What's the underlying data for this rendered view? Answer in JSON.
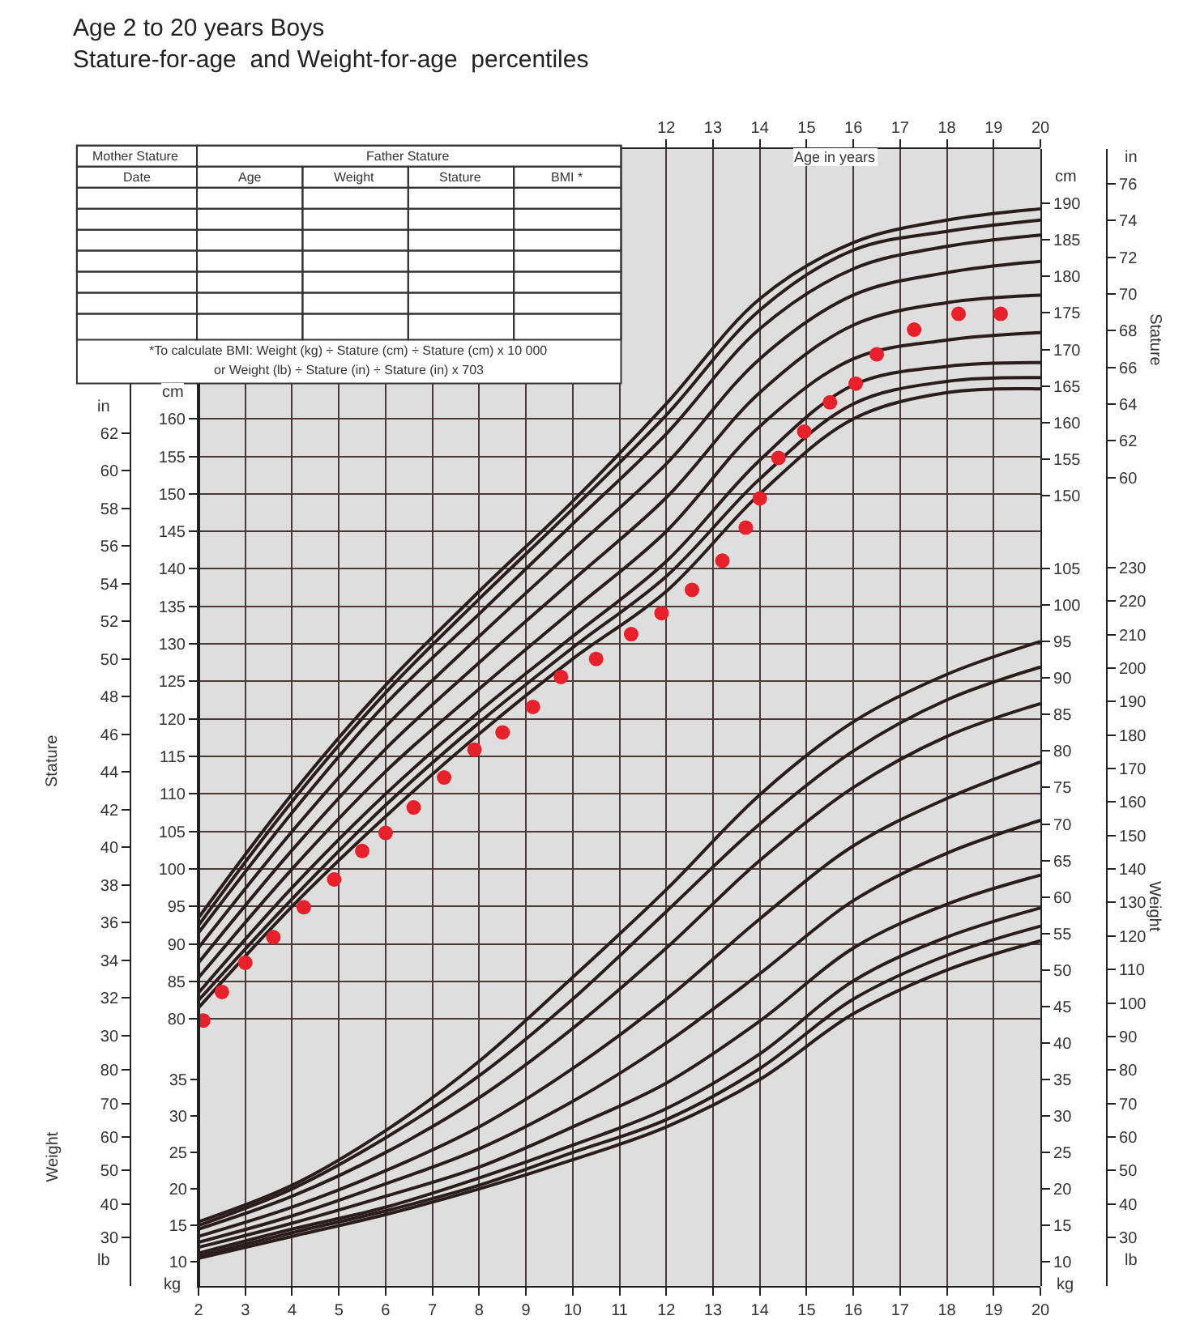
{
  "chart_data": [
    {
      "type": "line",
      "title": "Age 2 to 20 years Boys",
      "subtitle": "Stature-for-age  and Weight-for-age  percentiles",
      "x2label": "Age in years",
      "ylabel": "cm",
      "y2label": "cm",
      "y3label": "in",
      "annotations": [
        "Mother Stature",
        "Father Stature",
        "Date",
        "Age",
        "Weight",
        "Stature",
        "BMI *",
        "*To calculate BMI: Weight (kg) ÷ Stature (cm) ÷ Stature (cm) x 10 000",
        "or Weight (lb) ÷ Stature (in) ÷ Stature (in) x 703",
        "Stature",
        "Stature"
      ],
      "x": [
        2,
        4,
        6,
        8,
        10,
        12,
        14,
        16,
        18,
        20
      ],
      "xlim": [
        2,
        20
      ],
      "xticks": [
        2,
        3,
        4,
        5,
        6,
        7,
        8,
        9,
        10,
        11,
        12,
        13,
        14,
        15,
        16,
        17,
        18,
        19,
        20
      ],
      "x2lim": [
        2,
        20
      ],
      "x2ticks": [
        12,
        13,
        14,
        15,
        16,
        17,
        18,
        19,
        20
      ],
      "ylim": [
        44.4,
        196.0
      ],
      "yticks": [
        80,
        85,
        90,
        95,
        100,
        105,
        110,
        115,
        120,
        125,
        130,
        135,
        140,
        145,
        150,
        155,
        160
      ],
      "y2lim": [
        42.1,
        197.4
      ],
      "y2ticks": [
        150,
        155,
        160,
        165,
        170,
        175,
        180,
        185,
        190
      ],
      "y3lim": [
        16.7,
        77.1
      ],
      "y3ticks": [
        30,
        32,
        34,
        36,
        38,
        40,
        42,
        44,
        46,
        48,
        50,
        52,
        54,
        56,
        58,
        60,
        62
      ],
      "grid": true,
      "marker": "none",
      "line_style": "solid",
      "series": [
        {
          "color": "#2b1d1d",
          "values": [
            81.5,
            95,
            107,
            118,
            128,
            137,
            150,
            160,
            163.5,
            164
          ]
        },
        {
          "color": "#2b1d1d",
          "values": [
            82.5,
            96,
            108.5,
            119.5,
            129.5,
            139,
            152,
            162,
            165,
            165.5
          ]
        },
        {
          "color": "#2b1d1d",
          "values": [
            83.5,
            97.5,
            110,
            121,
            131,
            141,
            154.5,
            164.5,
            167,
            167.5
          ]
        },
        {
          "color": "#2b1d1d",
          "values": [
            85.5,
            100,
            113,
            124,
            134.5,
            145,
            159,
            168,
            170.5,
            171.5
          ]
        },
        {
          "color": "#2b1d1d",
          "values": [
            87.5,
            102.5,
            116,
            127.5,
            138.5,
            149.5,
            163.5,
            172.5,
            175.5,
            176.5
          ]
        },
        {
          "color": "#2b1d1d",
          "values": [
            89.5,
            105,
            119,
            131,
            142.5,
            154,
            168,
            176.5,
            179.5,
            181
          ]
        },
        {
          "color": "#2b1d1d",
          "values": [
            91.5,
            107.5,
            122,
            134,
            146,
            158,
            172,
            180,
            183,
            184.5
          ]
        },
        {
          "color": "#2b1d1d",
          "values": [
            92.5,
            109,
            123.5,
            136,
            148,
            160.5,
            174.5,
            182.5,
            185,
            186.5
          ]
        },
        {
          "color": "#2b1d1d",
          "values": [
            93.5,
            110,
            124.5,
            137,
            149,
            162,
            176,
            183.5,
            186.5,
            188
          ]
        },
        {
          "type": "scatter",
          "marker": "circle",
          "color": "#e8202a",
          "x": [
            2.1,
            2.5,
            3.0,
            3.6,
            4.25,
            4.9,
            5.5,
            6.0,
            6.6,
            7.25,
            7.9,
            8.5,
            9.15,
            9.75,
            10.5,
            11.25,
            11.9,
            12.55,
            13.2,
            13.7,
            14.0,
            14.4,
            14.95,
            15.5,
            16.05,
            16.5,
            17.3,
            18.25,
            19.15
          ],
          "values": [
            79.8,
            83.6,
            87.5,
            90.9,
            94.9,
            98.6,
            102.4,
            104.8,
            108.2,
            112.2,
            115.9,
            118.2,
            121.6,
            125.6,
            128.0,
            131.3,
            134.1,
            137.2,
            141.1,
            145.5,
            149.4,
            154.8,
            158.3,
            162.2,
            164.7,
            168.6,
            171.9,
            174.0,
            174.0
          ]
        }
      ]
    },
    {
      "type": "line",
      "ylabel": "kg",
      "y2label": "lb",
      "y3label": "kg",
      "annotations": [
        "Weight",
        "Weight"
      ],
      "x": [
        2,
        4,
        6,
        8,
        10,
        12,
        14,
        16,
        18,
        20
      ],
      "xlim": [
        2,
        20
      ],
      "tick_labels": "y",
      "ylim": [
        6.7,
        162.5
      ],
      "yticks": [
        10,
        15,
        20,
        25,
        30,
        35,
        40,
        45,
        50,
        55,
        60,
        65,
        70,
        75,
        80,
        85,
        90,
        95,
        100,
        105
      ],
      "y2lim": [
        15.5,
        355
      ],
      "y2ticks": [
        30,
        40,
        50,
        60,
        70,
        80,
        90,
        100,
        110,
        120,
        130,
        140,
        150,
        160,
        170,
        180,
        190,
        200,
        210,
        220,
        230
      ],
      "y3lim": [
        6.7,
        162.5
      ],
      "y3ticks": [
        10,
        15,
        20,
        25,
        30,
        35
      ],
      "marker": "none",
      "line_style": "solid",
      "series": [
        {
          "color": "#2b1d1d",
          "values": [
            10.5,
            13.5,
            16.5,
            20,
            24,
            28.5,
            35,
            44,
            50,
            54
          ]
        },
        {
          "color": "#2b1d1d",
          "values": [
            10.8,
            14,
            17,
            20.5,
            25,
            29.5,
            36.5,
            46,
            52,
            56
          ]
        },
        {
          "color": "#2b1d1d",
          "values": [
            11.2,
            14.5,
            17.5,
            21.5,
            26,
            31,
            38.5,
            48.5,
            54.5,
            58.5
          ]
        },
        {
          "color": "#2b1d1d",
          "values": [
            12,
            15.3,
            19,
            23,
            28.5,
            34.5,
            43,
            53,
            59,
            63
          ]
        },
        {
          "color": "#2b1d1d",
          "values": [
            12.7,
            16.3,
            20.7,
            25.5,
            32,
            40,
            49.5,
            59.5,
            66,
            70.5
          ]
        },
        {
          "color": "#2b1d1d",
          "values": [
            13.5,
            17.5,
            22.5,
            28.5,
            36.5,
            46,
            57,
            67,
            73.5,
            78.5
          ]
        },
        {
          "color": "#2b1d1d",
          "values": [
            14.5,
            19,
            25,
            32.5,
            42,
            53,
            65,
            75,
            82,
            86.5
          ]
        },
        {
          "color": "#2b1d1d",
          "values": [
            15,
            20,
            27,
            35.5,
            46,
            58,
            70,
            80,
            87,
            91.5
          ]
        },
        {
          "color": "#2b1d1d",
          "values": [
            15.5,
            20.5,
            28,
            37.5,
            49,
            61,
            74,
            84,
            90.5,
            95
          ]
        }
      ]
    },
    {
      "type": "line",
      "ylabel": "in",
      "y2label": "lb",
      "xlim": [
        2,
        20
      ],
      "tick_labels": "y",
      "ylim": [
        16.0,
        77.9
      ],
      "yticks": [
        60,
        62,
        64,
        66,
        68,
        70,
        72,
        74,
        76
      ],
      "y2lim": [
        15.5,
        355
      ],
      "y2ticks": [
        30,
        40,
        50,
        60,
        70,
        80
      ]
    }
  ]
}
